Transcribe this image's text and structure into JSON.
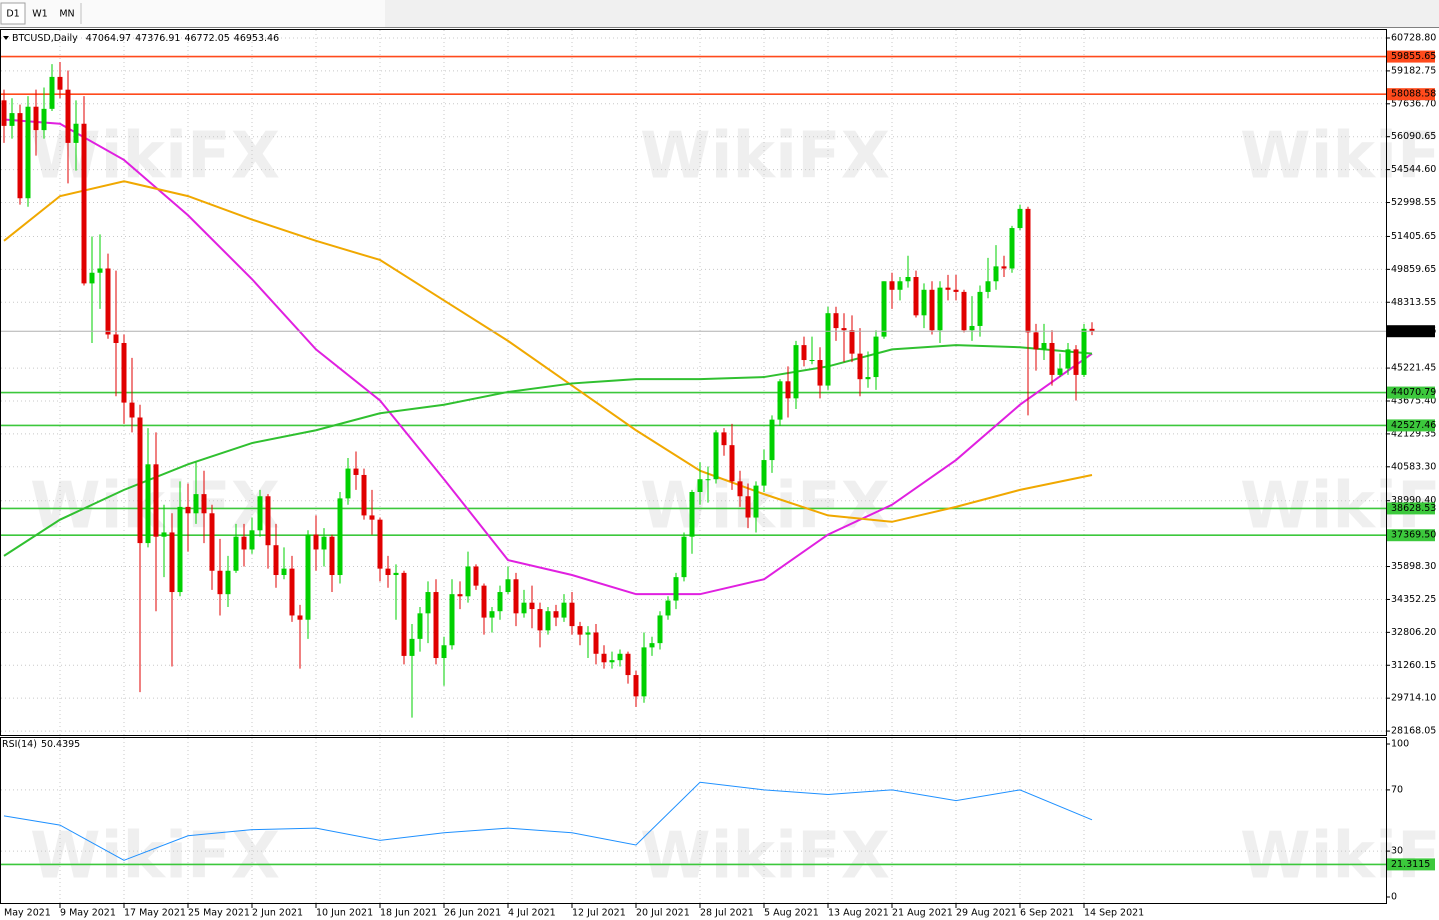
{
  "tabs": [
    "D1",
    "W1",
    "MN"
  ],
  "watermark": "WikiFX",
  "chart_data": {
    "type": "candlestick",
    "title": "BTCUSD,Daily",
    "up_color": "#00d000",
    "down_color": "#e00000",
    "x": [
      "2 May 2021",
      "3 May 2021",
      "4 May 2021",
      "5 May 2021",
      "6 May 2021",
      "7 May 2021",
      "8 May 2021",
      "9 May 2021",
      "10 May 2021",
      "11 May 2021",
      "12 May 2021",
      "13 May 2021",
      "14 May 2021",
      "15 May 2021",
      "16 May 2021",
      "17 May 2021",
      "18 May 2021",
      "19 May 2021",
      "20 May 2021",
      "21 May 2021",
      "22 May 2021",
      "23 May 2021",
      "24 May 2021",
      "25 May 2021",
      "26 May 2021",
      "27 May 2021",
      "28 May 2021",
      "29 May 2021",
      "30 May 2021",
      "31 May 2021",
      "1 Jun 2021",
      "2 Jun 2021",
      "3 Jun 2021",
      "4 Jun 2021",
      "5 Jun 2021",
      "6 Jun 2021",
      "7 Jun 2021",
      "8 Jun 2021",
      "9 Jun 2021",
      "10 Jun 2021",
      "11 Jun 2021",
      "12 Jun 2021",
      "13 Jun 2021",
      "14 Jun 2021",
      "15 Jun 2021",
      "16 Jun 2021",
      "17 Jun 2021",
      "18 Jun 2021",
      "19 Jun 2021",
      "20 Jun 2021",
      "21 Jun 2021",
      "22 Jun 2021",
      "23 Jun 2021",
      "24 Jun 2021",
      "25 Jun 2021",
      "26 Jun 2021",
      "27 Jun 2021",
      "28 Jun 2021",
      "29 Jun 2021",
      "30 Jun 2021",
      "1 Jul 2021",
      "2 Jul 2021",
      "3 Jul 2021",
      "4 Jul 2021",
      "5 Jul 2021",
      "6 Jul 2021",
      "7 Jul 2021",
      "8 Jul 2021",
      "9 Jul 2021",
      "10 Jul 2021",
      "11 Jul 2021",
      "12 Jul 2021",
      "13 Jul 2021",
      "14 Jul 2021",
      "15 Jul 2021",
      "16 Jul 2021",
      "17 Jul 2021",
      "18 Jul 2021",
      "19 Jul 2021",
      "20 Jul 2021",
      "21 Jul 2021",
      "22 Jul 2021",
      "23 Jul 2021",
      "24 Jul 2021",
      "25 Jul 2021",
      "26 Jul 2021",
      "27 Jul 2021",
      "28 Jul 2021",
      "29 Jul 2021",
      "30 Jul 2021",
      "31 Jul 2021",
      "1 Aug 2021",
      "2 Aug 2021",
      "3 Aug 2021",
      "4 Aug 2021",
      "5 Aug 2021",
      "6 Aug 2021",
      "7 Aug 2021",
      "8 Aug 2021",
      "9 Aug 2021",
      "10 Aug 2021",
      "11 Aug 2021",
      "12 Aug 2021",
      "13 Aug 2021",
      "14 Aug 2021",
      "15 Aug 2021",
      "16 Aug 2021",
      "17 Aug 2021",
      "18 Aug 2021",
      "19 Aug 2021",
      "20 Aug 2021",
      "21 Aug 2021",
      "22 Aug 2021",
      "23 Aug 2021",
      "24 Aug 2021",
      "25 Aug 2021",
      "26 Aug 2021",
      "27 Aug 2021",
      "28 Aug 2021",
      "29 Aug 2021",
      "30 Aug 2021",
      "31 Aug 2021",
      "1 Sep 2021",
      "2 Sep 2021",
      "3 Sep 2021",
      "4 Sep 2021",
      "5 Sep 2021",
      "6 Sep 2021",
      "7 Sep 2021",
      "8 Sep 2021",
      "9 Sep 2021",
      "10 Sep 2021",
      "11 Sep 2021",
      "12 Sep 2021",
      "13 Sep 2021",
      "14 Sep 2021",
      "15 Sep 2021"
    ],
    "open": [
      57800,
      56600,
      57200,
      53200,
      57500,
      56400,
      57400,
      58900,
      58300,
      55800,
      56700,
      49200,
      49700,
      49900,
      46800,
      46400,
      43600,
      42900,
      37000,
      40700,
      37300,
      37500,
      34700,
      38700,
      38400,
      39300,
      38400,
      35700,
      34600,
      35700,
      37300,
      36700,
      37600,
      39200,
      36900,
      35500,
      35800,
      33600,
      33400,
      37400,
      36700,
      37300,
      35500,
      39100,
      40500,
      40200,
      38300,
      38100,
      35800,
      35500,
      35600,
      31700,
      32500,
      33700,
      34700,
      31600,
      32200,
      34600,
      34500,
      35900,
      35000,
      33500,
      33800,
      34700,
      35300,
      33700,
      34200,
      33900,
      32900,
      33800,
      33500,
      34200,
      33100,
      32700,
      32800,
      31800,
      31400,
      31500,
      31800,
      30800,
      29800,
      32100,
      32300,
      33600,
      34300,
      35400,
      37300,
      39400,
      40000,
      40000,
      42200,
      41600,
      39900,
      39200,
      38200,
      39700,
      40900,
      42800,
      44600,
      43800,
      46300,
      45600,
      45600,
      44400,
      47800,
      47100,
      47000,
      45900,
      44700,
      44800,
      46700,
      49300,
      48900,
      49300,
      49500,
      47700,
      48900,
      47000,
      49000,
      48900,
      48800,
      47000,
      47200,
      48800,
      49300,
      50000,
      49900,
      51800,
      52700,
      46900,
      46100,
      46400,
      44900,
      45200,
      46100,
      44900,
      47064.97
    ],
    "high": [
      58300,
      57900,
      57600,
      58000,
      58300,
      58400,
      59500,
      59600,
      59200,
      57800,
      58000,
      51400,
      51500,
      50600,
      49800,
      46800,
      45700,
      43500,
      42400,
      42200,
      38800,
      38400,
      39900,
      39800,
      40800,
      40400,
      38800,
      37200,
      36400,
      37900,
      37900,
      38200,
      39500,
      39300,
      37900,
      36800,
      36400,
      34100,
      37600,
      38300,
      37700,
      37400,
      39400,
      41000,
      41300,
      40500,
      39500,
      38200,
      36400,
      36000,
      35700,
      33200,
      34000,
      35200,
      35300,
      32600,
      35300,
      35200,
      36600,
      36000,
      35100,
      34000,
      35000,
      35900,
      35600,
      34800,
      35000,
      34200,
      34000,
      34100,
      34600,
      34700,
      33300,
      33100,
      33200,
      32200,
      31900,
      32000,
      31900,
      31000,
      32800,
      32600,
      33800,
      34500,
      35600,
      37500,
      39500,
      40800,
      40600,
      42300,
      42400,
      42600,
      40400,
      39800,
      39900,
      41400,
      43000,
      44700,
      45300,
      46500,
      46700,
      46700,
      46200,
      48100,
      48100,
      47800,
      47700,
      47100,
      46000,
      47000,
      49300,
      49700,
      49500,
      50500,
      49800,
      49200,
      49300,
      49300,
      49600,
      49600,
      48900,
      48600,
      49100,
      50400,
      51000,
      50500,
      51900,
      52900,
      52800,
      47300,
      47300,
      47000,
      45900,
      46400,
      46300,
      47300,
      47376.91
    ],
    "low": [
      55800,
      56000,
      52900,
      52800,
      55200,
      56000,
      57300,
      57900,
      53900,
      54500,
      49100,
      46400,
      48000,
      46600,
      43900,
      42600,
      42200,
      30000,
      36800,
      33800,
      35400,
      31200,
      34500,
      36600,
      37900,
      37000,
      34800,
      33600,
      34000,
      35600,
      35900,
      36500,
      37300,
      35800,
      34900,
      35300,
      33300,
      31100,
      32500,
      35700,
      35900,
      34700,
      35100,
      38800,
      39500,
      38100,
      37400,
      35200,
      34900,
      33400,
      31300,
      28800,
      31900,
      32300,
      31300,
      30300,
      32000,
      33900,
      34200,
      34800,
      32700,
      32800,
      33400,
      34600,
      33100,
      33500,
      33000,
      32100,
      32700,
      33100,
      33300,
      32700,
      32200,
      31600,
      31300,
      31100,
      31100,
      31200,
      30400,
      29300,
      29500,
      31700,
      32000,
      33400,
      33900,
      35200,
      36500,
      38800,
      38900,
      39800,
      41100,
      39500,
      38700,
      37700,
      37500,
      39400,
      40300,
      42500,
      42900,
      43300,
      45300,
      45400,
      43800,
      44200,
      46500,
      45500,
      45500,
      43900,
      44300,
      44200,
      46600,
      48000,
      48400,
      49000,
      47600,
      47100,
      46800,
      46400,
      48400,
      48400,
      46900,
      46500,
      46700,
      48500,
      48900,
      49500,
      49700,
      51700,
      43000,
      45100,
      45600,
      44400,
      44800,
      44900,
      43700,
      44800,
      46772.05
    ],
    "close": [
      56600,
      57200,
      53200,
      57500,
      56400,
      57400,
      58900,
      58300,
      55800,
      56700,
      49200,
      49700,
      49900,
      46800,
      46400,
      43600,
      42900,
      37000,
      40700,
      37300,
      37500,
      34700,
      38700,
      38400,
      39300,
      38400,
      35700,
      34600,
      35700,
      37300,
      36700,
      37600,
      39200,
      36900,
      35500,
      35800,
      33600,
      33400,
      37400,
      36700,
      37300,
      35500,
      39100,
      40500,
      40200,
      38300,
      38100,
      35800,
      35500,
      35600,
      31700,
      32500,
      33700,
      34700,
      31600,
      32200,
      34600,
      34500,
      35900,
      35000,
      33500,
      33800,
      34700,
      35300,
      33700,
      34200,
      33900,
      32900,
      33800,
      33500,
      34200,
      33100,
      32700,
      32800,
      31800,
      31400,
      31500,
      31800,
      30800,
      29800,
      32100,
      32300,
      33600,
      34300,
      35400,
      37300,
      39400,
      40000,
      40000,
      42200,
      41600,
      39900,
      39200,
      38200,
      39700,
      40900,
      42800,
      44600,
      43800,
      46300,
      45600,
      45600,
      44400,
      47800,
      47100,
      47000,
      45900,
      44700,
      44800,
      46700,
      49300,
      48900,
      49300,
      49500,
      47700,
      48900,
      47000,
      49000,
      48900,
      48800,
      47000,
      47200,
      48800,
      49300,
      50000,
      49900,
      51800,
      52700,
      46900,
      46100,
      46400,
      44900,
      45200,
      46100,
      44900,
      47064.97,
      46953.46
    ],
    "ylim": [
      27984,
      61104
    ],
    "yticks": [
      {
        "value": 60728.8,
        "label": "60728.80"
      },
      59182.75,
      {
        "value": 57636.7,
        "label": "57636.70"
      },
      56090.65,
      {
        "value": 54544.6,
        "label": "54544.60"
      },
      52998.55,
      51405.65,
      49859.65,
      48313.55,
      45221.45,
      {
        "value": 43675.4,
        "label": "43675.40"
      },
      42129.35,
      {
        "value": 40583.3,
        "label": "40583.30"
      },
      {
        "value": 38990.4,
        "label": "38990.40"
      },
      {
        "value": 35898.3,
        "label": "35898.30"
      },
      34352.25,
      {
        "value": 32806.2,
        "label": "32806.20"
      },
      31260.15,
      {
        "value": 29714.1,
        "label": "29714.10"
      },
      28168.05
    ],
    "xticks": [
      "May 2021",
      "9 May 2021",
      "17 May 2021",
      "25 May 2021",
      "2 Jun 2021",
      "10 Jun 2021",
      "18 Jun 2021",
      "26 Jun 2021",
      "4 Jul 2021",
      "12 Jul 2021",
      "20 Jul 2021",
      "28 Jul 2021",
      "5 Aug 2021",
      "13 Aug 2021",
      "21 Aug 2021",
      "29 Aug 2021",
      "6 Sep 2021",
      "14 Sep 2021"
    ],
    "grid": true,
    "levels": [
      {
        "value": 59855.65,
        "color": "#ff4a1c"
      },
      {
        "value": 58088.58,
        "color": "#ff4a1c"
      },
      {
        "value": 44070.79,
        "color": "#3cc83c"
      },
      {
        "value": 42527.46,
        "color": "#3cc83c"
      },
      {
        "value": 38628.53,
        "color": "#3cc83c"
      },
      {
        "value": 37369.5,
        "label": "37369.50",
        "color": "#3cc83c"
      }
    ],
    "line_x": [
      "2 May 2021",
      "9 May 2021",
      "17 May 2021",
      "25 May 2021",
      "2 Jun 2021",
      "10 Jun 2021",
      "18 Jun 2021",
      "26 Jun 2021",
      "4 Jul 2021",
      "12 Jul 2021",
      "20 Jul 2021",
      "28 Jul 2021",
      "5 Aug 2021",
      "13 Aug 2021",
      "21 Aug 2021",
      "29 Aug 2021",
      "6 Sep 2021",
      "15 Sep 2021"
    ],
    "lines": [
      {
        "color": "#e020e0",
        "values": [
          56900,
          56700,
          55000,
          52400,
          49400,
          46100,
          43700,
          40000,
          36200,
          35500,
          34600,
          34600,
          35300,
          37400,
          38800,
          40900,
          43500,
          45900
        ]
      },
      {
        "color": "#f0a800",
        "values": [
          51200,
          53300,
          54000,
          53300,
          52200,
          51200,
          50300,
          48400,
          46500,
          44400,
          42300,
          40400,
          39300,
          38300,
          38000,
          38700,
          39500,
          40200
        ]
      },
      {
        "color": "#30c030",
        "values": [
          36400,
          38100,
          39500,
          40700,
          41700,
          42300,
          43100,
          43500,
          44100,
          44500,
          44700,
          44700,
          44800,
          45300,
          46100,
          46300,
          46200,
          45900
        ]
      }
    ],
    "rsi": {
      "label": "RSI(14)",
      "color": "#1e90ff",
      "values": [
        53,
        47,
        24,
        40,
        44,
        45,
        37,
        42,
        45,
        42,
        34,
        75,
        70,
        67,
        70,
        63,
        70,
        50.4395
      ],
      "ylim": [
        0,
        100
      ],
      "yticks": [
        100,
        70,
        30,
        0
      ],
      "level": 21.3115,
      "level_color": "#3cc83c"
    }
  }
}
